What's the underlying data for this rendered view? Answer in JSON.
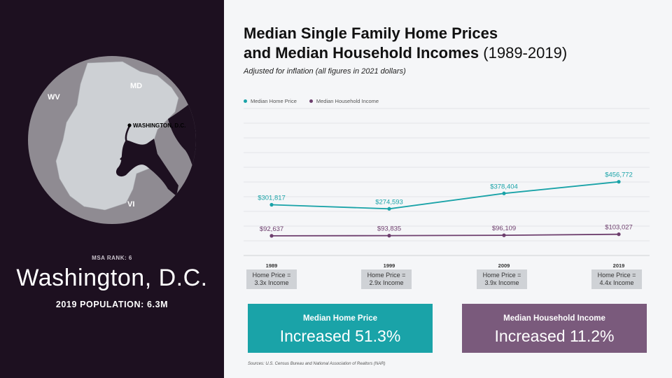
{
  "left": {
    "map_labels": {
      "wv": "WV",
      "md": "MD",
      "vi": "VI",
      "city": "WASHINGTON, D.C."
    },
    "msa_rank": "MSA RANK: 6",
    "city_name": "Washington, D.C.",
    "population": "2019 POPULATION: 6.3M",
    "colors": {
      "bg": "#1d1020",
      "circle": "#8f8b92",
      "land": "#cdd0d4",
      "water": "#1d1020"
    }
  },
  "title_bold_1": "Median Single Family Home Prices",
  "title_bold_2": "and Median Household Incomes",
  "title_light": "(1989-2019)",
  "subtitle": "Adjusted for inflation (all figures in 2021 dollars)",
  "chart_data": {
    "type": "line",
    "x": [
      "1989",
      "1999",
      "2009",
      "2019"
    ],
    "series": [
      {
        "name": "Median Home Price",
        "values": [
          301817,
          274593,
          378404,
          456772
        ],
        "labels": [
          "$301,817",
          "$274,593",
          "$378,404",
          "$456,772"
        ],
        "color": "#1aa3a8"
      },
      {
        "name": "Median Household Income",
        "values": [
          92637,
          93835,
          96109,
          103027
        ],
        "labels": [
          "$92,637",
          "$93,835",
          "$96,109",
          "$103,027"
        ],
        "color": "#6e3f6e"
      }
    ],
    "ylim": [
      0,
      1000000
    ],
    "grid": true,
    "legend": "top-left"
  },
  "ratios": [
    {
      "line1": "Home Price =",
      "line2": "3.3x Income"
    },
    {
      "line1": "Home Price =",
      "line2": "2.9x Income"
    },
    {
      "line1": "Home Price =",
      "line2": "3.9x Income"
    },
    {
      "line1": "Home Price =",
      "line2": "4.4x Income"
    }
  ],
  "summary": [
    {
      "heading": "Median Home Price",
      "value": "Increased 51.3%",
      "color": "#1aa3a8"
    },
    {
      "heading": "Median Household Income",
      "value": "Increased 11.2%",
      "color": "#7a5a7c"
    }
  ],
  "source": "Sources: U.S. Census Bureau and National Association of Realtors (NAR)"
}
